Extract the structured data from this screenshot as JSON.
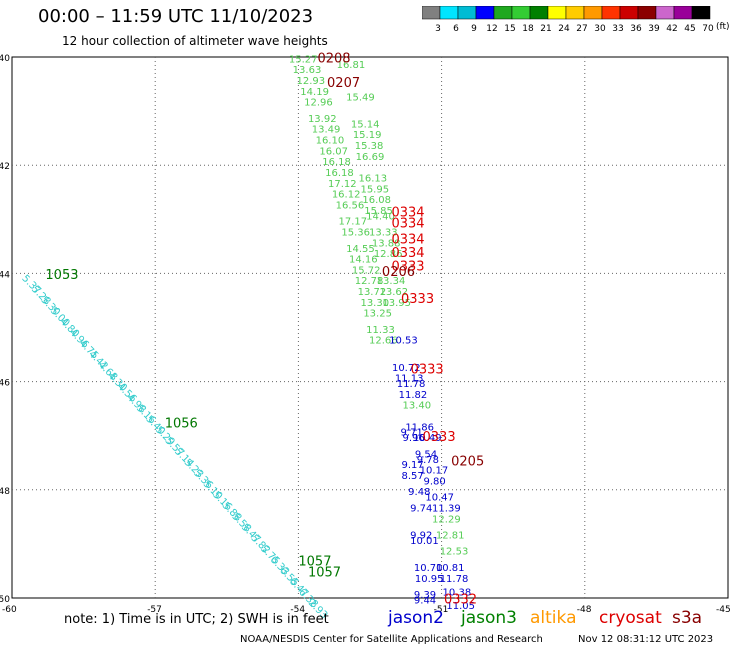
{
  "header": {
    "title": "00:00 – 11:59 UTC 11/10/2023",
    "subtitle": "12 hour collection of altimeter wave heights"
  },
  "footer": {
    "note": "note: 1) Time is in UTC; 2) SWH is in feet",
    "credit": "NOAA/NESDIS Center for Satellite Applications and Research",
    "timestamp": "Nov 12 08:31:12 UTC 2023"
  },
  "satellites": [
    {
      "name": "jason2",
      "color": "#0000cc"
    },
    {
      "name": "jason3",
      "color": "#008000"
    },
    {
      "name": "altika",
      "color": "#ff9900"
    },
    {
      "name": "cryosat",
      "color": "#dd0000"
    },
    {
      "name": "s3a",
      "color": "#880000"
    }
  ],
  "color_scale": {
    "labels": [
      "3",
      "6",
      "9",
      "12",
      "15",
      "18",
      "21",
      "24",
      "27",
      "30",
      "33",
      "36",
      "39",
      "42",
      "45",
      "70"
    ],
    "colors": [
      "#808080",
      "#00e5ff",
      "#00bcd4",
      "#0000ff",
      "#1fa81f",
      "#33cc33",
      "#008000",
      "#ffff00",
      "#ffcc00",
      "#ff9900",
      "#ff3300",
      "#cc0000",
      "#8b0000",
      "#cc66cc",
      "#990099",
      "#000000"
    ],
    "unit": "(ft)"
  },
  "map": {
    "lat_labels": [
      "-40",
      "-42",
      "-44",
      "-46",
      "-48",
      "-50"
    ],
    "lon_labels": [
      "-60",
      "-57",
      "-54",
      "-51",
      "-48",
      "-45"
    ]
  },
  "tracks": {
    "light_green": {
      "color": "#55cc55",
      "points": [
        {
          "v": "15.27",
          "lat": -40.1,
          "lon": -54.2
        },
        {
          "v": "13.63",
          "lat": -40.3,
          "lon": -54.12
        },
        {
          "v": "12.93",
          "lat": -40.5,
          "lon": -54.04
        },
        {
          "v": "14.19",
          "lat": -40.7,
          "lon": -53.96
        },
        {
          "v": "12.96",
          "lat": -40.9,
          "lon": -53.88
        },
        {
          "v": "13.92",
          "lat": -41.2,
          "lon": -53.8
        },
        {
          "v": "13.49",
          "lat": -41.4,
          "lon": -53.72
        },
        {
          "v": "16.10",
          "lat": -41.6,
          "lon": -53.64
        },
        {
          "v": "16.07",
          "lat": -41.8,
          "lon": -53.56
        },
        {
          "v": "16.18",
          "lat": -42.0,
          "lon": -53.5
        },
        {
          "v": "16.18",
          "lat": -42.2,
          "lon": -53.44
        },
        {
          "v": "17.12",
          "lat": -42.4,
          "lon": -53.38
        },
        {
          "v": "16.12",
          "lat": -42.6,
          "lon": -53.3
        },
        {
          "v": "16.56",
          "lat": -42.8,
          "lon": -53.22
        },
        {
          "v": "17.17",
          "lat": -43.1,
          "lon": -53.16
        },
        {
          "v": "15.36",
          "lat": -43.3,
          "lon": -53.1
        },
        {
          "v": "14.55",
          "lat": -43.6,
          "lon": -53.0
        },
        {
          "v": "14.16",
          "lat": -43.8,
          "lon": -52.94
        },
        {
          "v": "15.72",
          "lat": -44.0,
          "lon": -52.88
        },
        {
          "v": "12.78",
          "lat": -44.2,
          "lon": -52.82
        },
        {
          "v": "13.72",
          "lat": -44.4,
          "lon": -52.76
        },
        {
          "v": "13.30",
          "lat": -44.6,
          "lon": -52.7
        },
        {
          "v": "13.25",
          "lat": -44.8,
          "lon": -52.64
        },
        {
          "v": "11.33",
          "lat": -45.1,
          "lon": -52.58
        },
        {
          "v": "12.66",
          "lat": -45.3,
          "lon": -52.52
        }
      ]
    },
    "light_green_b": {
      "color": "#55cc55",
      "points": [
        {
          "v": "16.81",
          "lat": -40.2,
          "lon": -53.2
        },
        {
          "v": "15.49",
          "lat": -40.8,
          "lon": -53.0
        },
        {
          "v": "15.14",
          "lat": -41.3,
          "lon": -52.9
        },
        {
          "v": "15.19",
          "lat": -41.5,
          "lon": -52.86
        },
        {
          "v": "15.38",
          "lat": -41.7,
          "lon": -52.82
        },
        {
          "v": "16.69",
          "lat": -41.9,
          "lon": -52.8
        },
        {
          "v": "16.13",
          "lat": -42.3,
          "lon": -52.74
        },
        {
          "v": "15.95",
          "lat": -42.5,
          "lon": -52.7
        },
        {
          "v": "16.08",
          "lat": -42.7,
          "lon": -52.66
        },
        {
          "v": "15.85",
          "lat": -42.9,
          "lon": -52.62
        },
        {
          "v": "14.40",
          "lat": -43.0,
          "lon": -52.58
        },
        {
          "v": "13.33",
          "lat": -43.3,
          "lon": -52.52
        },
        {
          "v": "13.88",
          "lat": -43.5,
          "lon": -52.46
        },
        {
          "v": "12.86",
          "lat": -43.7,
          "lon": -52.42
        },
        {
          "v": "13.34",
          "lat": -44.2,
          "lon": -52.36
        },
        {
          "v": "13.62",
          "lat": -44.4,
          "lon": -52.3
        },
        {
          "v": "13.95",
          "lat": -44.6,
          "lon": -52.24
        },
        {
          "v": "13.40",
          "lat": -46.5,
          "lon": -51.82
        },
        {
          "v": "12.29",
          "lat": -48.6,
          "lon": -51.2
        },
        {
          "v": "12.81",
          "lat": -48.9,
          "lon": -51.12
        },
        {
          "v": "12.53",
          "lat": -49.2,
          "lon": -51.04
        }
      ]
    },
    "blue": {
      "color": "#0000cc",
      "points": [
        {
          "v": "10.53",
          "lat": -45.3,
          "lon": -52.1
        },
        {
          "v": "10.72",
          "lat": -45.8,
          "lon": -52.04
        },
        {
          "v": "11.13",
          "lat": -46.0,
          "lon": -51.98
        },
        {
          "v": "11.78",
          "lat": -46.1,
          "lon": -51.94
        },
        {
          "v": "11.82",
          "lat": -46.3,
          "lon": -51.9
        },
        {
          "v": "11.86",
          "lat": -46.9,
          "lon": -51.76
        },
        {
          "v": "9.71",
          "lat": -47.0,
          "lon": -51.86
        },
        {
          "v": "9.96",
          "lat": -47.1,
          "lon": -51.82
        },
        {
          "v": "10.49",
          "lat": -47.1,
          "lon": -51.6
        },
        {
          "v": "9.54",
          "lat": -47.4,
          "lon": -51.56
        },
        {
          "v": "9.78",
          "lat": -47.5,
          "lon": -51.52
        },
        {
          "v": "9.17",
          "lat": -47.6,
          "lon": -51.84
        },
        {
          "v": "10.17",
          "lat": -47.7,
          "lon": -51.46
        },
        {
          "v": "8.57",
          "lat": -47.8,
          "lon": -51.84
        },
        {
          "v": "9.80",
          "lat": -47.9,
          "lon": -51.38
        },
        {
          "v": "9.48",
          "lat": -48.1,
          "lon": -51.7
        },
        {
          "v": "10.47",
          "lat": -48.2,
          "lon": -51.34
        },
        {
          "v": "9.74",
          "lat": -48.4,
          "lon": -51.66
        },
        {
          "v": "11.39",
          "lat": -48.4,
          "lon": -51.2
        },
        {
          "v": "9.92",
          "lat": -48.9,
          "lon": -51.66
        },
        {
          "v": "10.01",
          "lat": -49.0,
          "lon": -51.66
        },
        {
          "v": "10.70",
          "lat": -49.5,
          "lon": -51.58
        },
        {
          "v": "10.81",
          "lat": -49.5,
          "lon": -51.12
        },
        {
          "v": "10.95",
          "lat": -49.7,
          "lon": -51.56
        },
        {
          "v": "11.78",
          "lat": -49.7,
          "lon": -51.04
        },
        {
          "v": "9.39",
          "lat": -50.0,
          "lon": -51.58
        },
        {
          "v": "10.38",
          "lat": -49.95,
          "lon": -50.98
        },
        {
          "v": "9.44",
          "lat": -50.1,
          "lon": -51.58
        },
        {
          "v": "11.05",
          "lat": -50.2,
          "lon": -50.9
        }
      ]
    },
    "cyan": {
      "color": "#33cccc",
      "points": [
        {
          "v": "5.37",
          "lat": -44.1,
          "lon": -59.8
        },
        {
          "v": "5.28",
          "lat": -44.3,
          "lon": -59.6
        },
        {
          "v": "5.30",
          "lat": -44.5,
          "lon": -59.4
        },
        {
          "v": "5.00",
          "lat": -44.7,
          "lon": -59.2
        },
        {
          "v": "4.80",
          "lat": -44.9,
          "lon": -59.0
        },
        {
          "v": "4.96",
          "lat": -45.1,
          "lon": -58.8
        },
        {
          "v": "4.75",
          "lat": -45.3,
          "lon": -58.6
        },
        {
          "v": "4.42",
          "lat": -45.5,
          "lon": -58.4
        },
        {
          "v": "4.68",
          "lat": -45.7,
          "lon": -58.2
        },
        {
          "v": "4.30",
          "lat": -45.9,
          "lon": -58.0
        },
        {
          "v": "4.56",
          "lat": -46.1,
          "lon": -57.8
        },
        {
          "v": "4.98",
          "lat": -46.3,
          "lon": -57.6
        },
        {
          "v": "5.16",
          "lat": -46.5,
          "lon": -57.4
        },
        {
          "v": "5.40",
          "lat": -46.7,
          "lon": -57.2
        },
        {
          "v": "5.29",
          "lat": -46.9,
          "lon": -57.0
        },
        {
          "v": "5.57",
          "lat": -47.1,
          "lon": -56.8
        },
        {
          "v": "5.14",
          "lat": -47.3,
          "lon": -56.6
        },
        {
          "v": "5.23",
          "lat": -47.5,
          "lon": -56.4
        },
        {
          "v": "5.36",
          "lat": -47.7,
          "lon": -56.2
        },
        {
          "v": "5.10",
          "lat": -47.9,
          "lon": -56.0
        },
        {
          "v": "5.16",
          "lat": -48.1,
          "lon": -55.8
        },
        {
          "v": "5.88",
          "lat": -48.3,
          "lon": -55.6
        },
        {
          "v": "5.58",
          "lat": -48.5,
          "lon": -55.4
        },
        {
          "v": "5.47",
          "lat": -48.7,
          "lon": -55.2
        },
        {
          "v": "5.82",
          "lat": -48.9,
          "lon": -55.0
        },
        {
          "v": "5.75",
          "lat": -49.1,
          "lon": -54.8
        },
        {
          "v": "6.33",
          "lat": -49.3,
          "lon": -54.6
        },
        {
          "v": "6.55",
          "lat": -49.5,
          "lon": -54.4
        },
        {
          "v": "6.47",
          "lat": -49.7,
          "lon": -54.2
        },
        {
          "v": "6.38",
          "lat": -49.9,
          "lon": -54.0
        },
        {
          "v": "2.93",
          "lat": -50.1,
          "lon": -53.8
        }
      ]
    },
    "passes": [
      {
        "label": "0208",
        "color": "#880000",
        "lat": -40.1,
        "lon": -53.6
      },
      {
        "label": "0207",
        "color": "#880000",
        "lat": -40.55,
        "lon": -53.4
      },
      {
        "label": "0334",
        "color": "#dd0000",
        "lat": -42.95,
        "lon": -52.05
      },
      {
        "label": "0334",
        "color": "#dd0000",
        "lat": -43.15,
        "lon": -52.05
      },
      {
        "label": "0334",
        "color": "#dd0000",
        "lat": -43.45,
        "lon": -52.05
      },
      {
        "label": "0334",
        "color": "#dd0000",
        "lat": -43.7,
        "lon": -52.05
      },
      {
        "label": "0333",
        "color": "#dd0000",
        "lat": -43.95,
        "lon": -52.05
      },
      {
        "label": "0206",
        "color": "#880000",
        "lat": -44.05,
        "lon": -52.25
      },
      {
        "label": "0333",
        "color": "#dd0000",
        "lat": -44.55,
        "lon": -51.85
      },
      {
        "label": "0333",
        "color": "#dd0000",
        "lat": -45.85,
        "lon": -51.65
      },
      {
        "label": "0333",
        "color": "#dd0000",
        "lat": -47.1,
        "lon": -51.4
      },
      {
        "label": "0205",
        "color": "#880000",
        "lat": -47.55,
        "lon": -50.8
      },
      {
        "label": "0332",
        "color": "#dd0000",
        "lat": -50.1,
        "lon": -50.95
      },
      {
        "label": "1053",
        "color": "#007700",
        "lat": -44.1,
        "lon": -59.3
      },
      {
        "label": "1056",
        "color": "#007700",
        "lat": -46.85,
        "lon": -56.8
      },
      {
        "label": "1057",
        "color": "#007700",
        "lat": -49.4,
        "lon": -54.0
      },
      {
        "label": "1057",
        "color": "#007700",
        "lat": -49.6,
        "lon": -53.8
      }
    ]
  }
}
